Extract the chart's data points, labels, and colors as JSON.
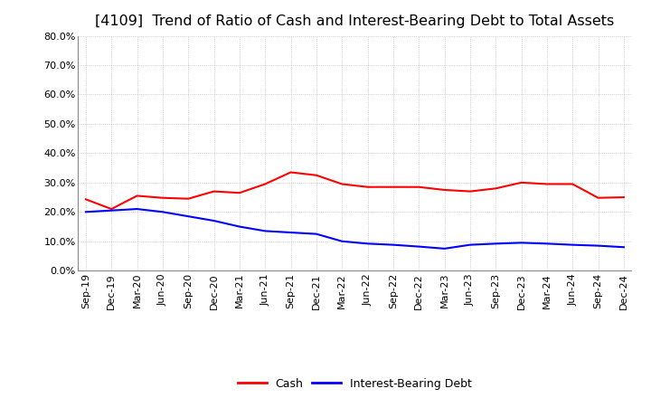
{
  "title": "[4109]  Trend of Ratio of Cash and Interest-Bearing Debt to Total Assets",
  "x_labels": [
    "Sep-19",
    "Dec-19",
    "Mar-20",
    "Jun-20",
    "Sep-20",
    "Dec-20",
    "Mar-21",
    "Jun-21",
    "Sep-21",
    "Dec-21",
    "Mar-22",
    "Jun-22",
    "Sep-22",
    "Dec-22",
    "Mar-23",
    "Jun-23",
    "Sep-23",
    "Dec-23",
    "Mar-24",
    "Jun-24",
    "Sep-24",
    "Dec-24"
  ],
  "cash": [
    0.243,
    0.21,
    0.255,
    0.248,
    0.245,
    0.27,
    0.265,
    0.295,
    0.335,
    0.325,
    0.295,
    0.285,
    0.285,
    0.285,
    0.275,
    0.27,
    0.28,
    0.3,
    0.295,
    0.295,
    0.248,
    0.25
  ],
  "debt": [
    0.2,
    0.205,
    0.21,
    0.2,
    0.185,
    0.17,
    0.15,
    0.135,
    0.13,
    0.125,
    0.1,
    0.092,
    0.088,
    0.082,
    0.075,
    0.088,
    0.092,
    0.095,
    0.092,
    0.088,
    0.085,
    0.08
  ],
  "cash_color": "#ff0000",
  "debt_color": "#0000ff",
  "ylim": [
    0.0,
    0.8
  ],
  "yticks": [
    0.0,
    0.1,
    0.2,
    0.3,
    0.4,
    0.5,
    0.6,
    0.7,
    0.8
  ],
  "background_color": "#ffffff",
  "grid_color": "#999999",
  "title_fontsize": 11.5,
  "tick_fontsize": 8,
  "legend_labels": [
    "Cash",
    "Interest-Bearing Debt"
  ],
  "line_width": 1.5
}
